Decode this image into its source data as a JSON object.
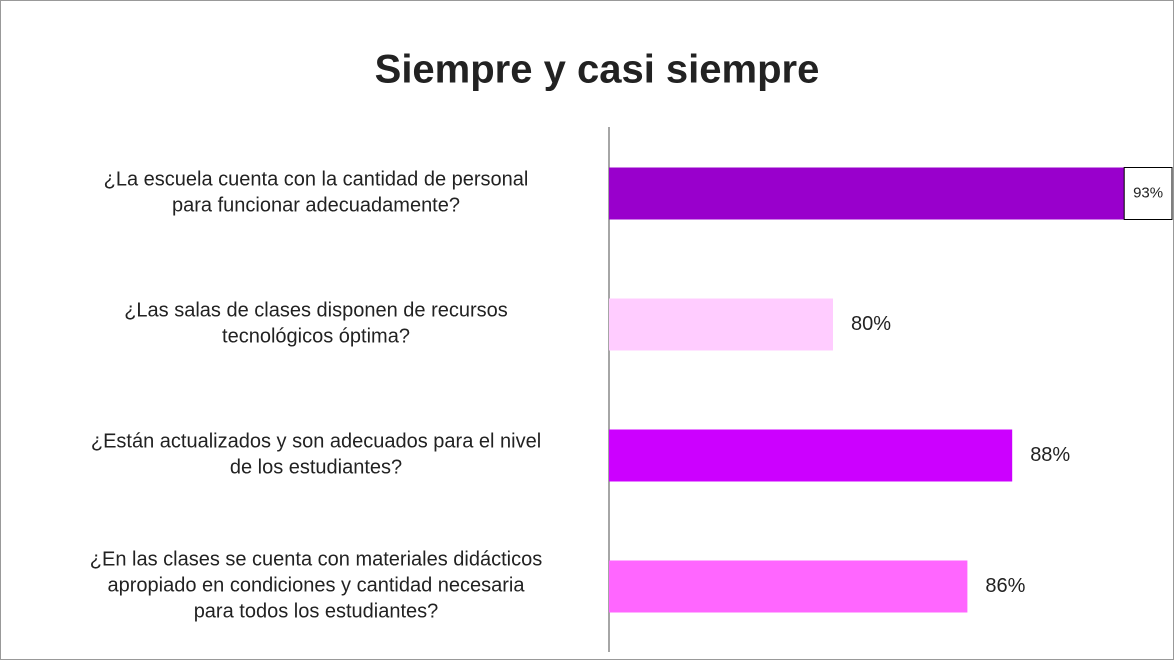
{
  "chart_data": {
    "type": "bar",
    "orientation": "horizontal",
    "title": "Siempre y casi siempre",
    "categories": [
      [
        "¿La escuela cuenta con la cantidad de personal",
        "para funcionar adecuadamente?"
      ],
      [
        "¿Las salas de clases disponen de recursos",
        "tecnológicos óptima?"
      ],
      [
        "¿Están actualizados y son adecuados para el nivel",
        "de los estudiantes?"
      ],
      [
        "¿En las clases se cuenta con materiales didácticos",
        "apropiado en condiciones y cantidad necesaria",
        "para todos los estudiantes?"
      ]
    ],
    "values": [
      93,
      80,
      88,
      86
    ],
    "value_labels": [
      "93%",
      "80%",
      "88%",
      "86%"
    ],
    "colors": [
      "#9900cc",
      "#ffccff",
      "#cc00ff",
      "#ff66ff"
    ],
    "xlim": [
      70,
      95
    ]
  }
}
